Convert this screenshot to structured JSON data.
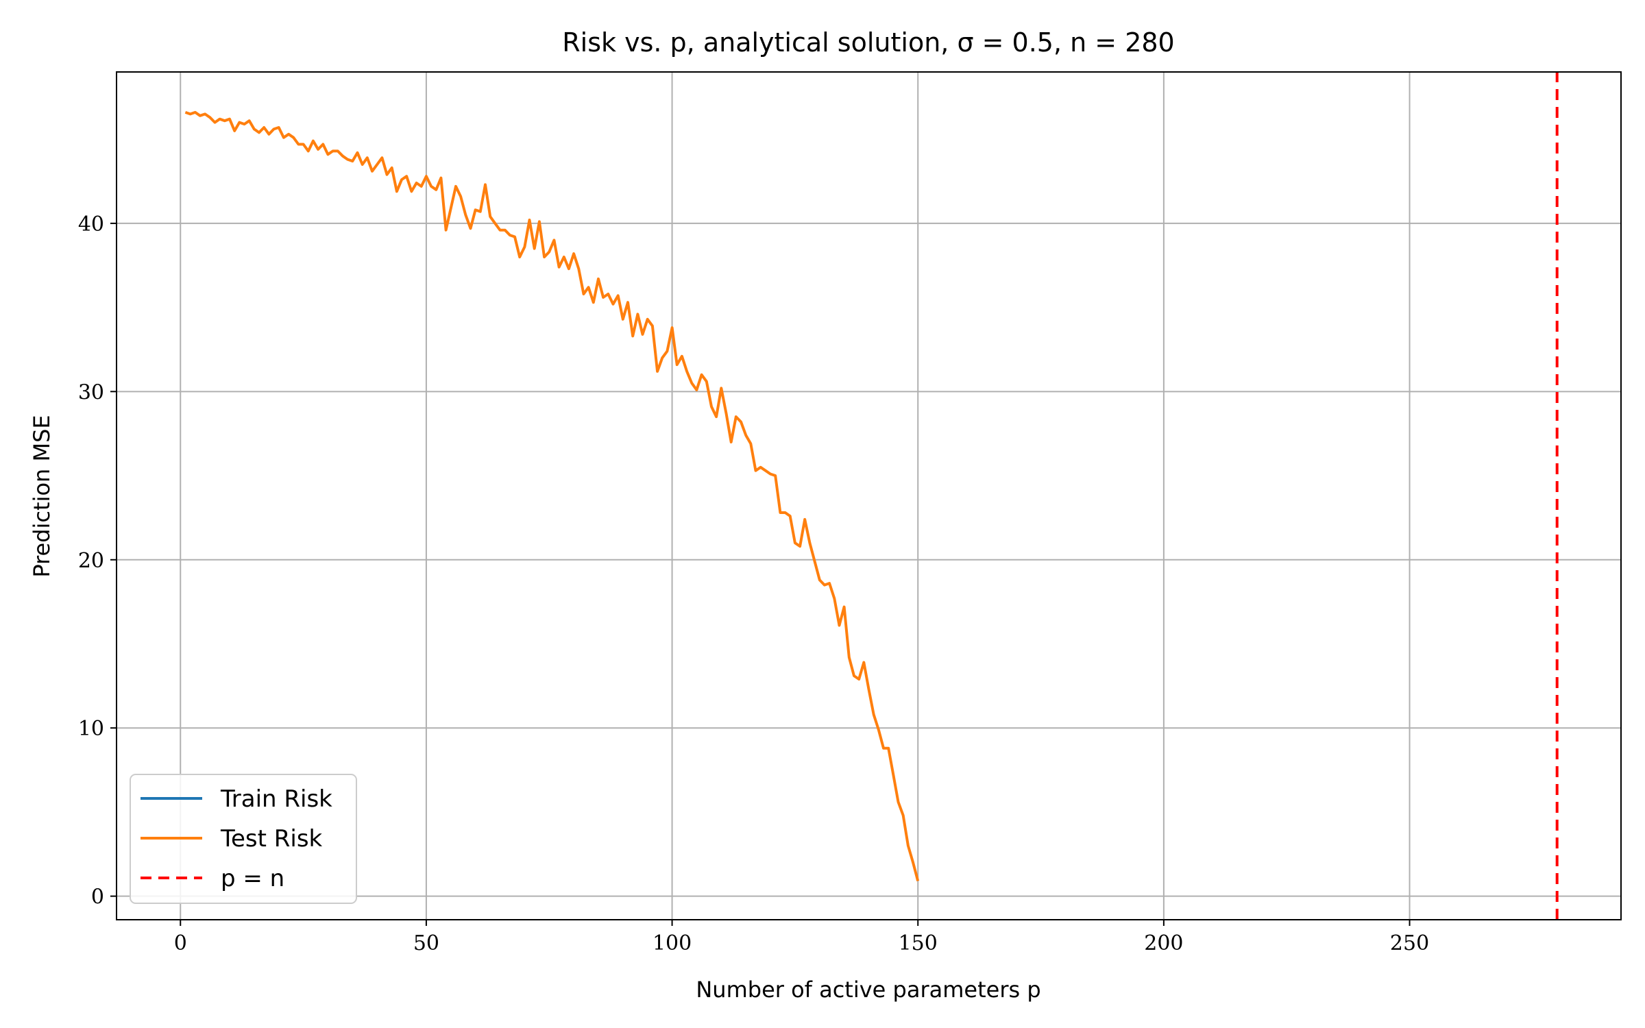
{
  "chart_data": {
    "type": "line",
    "title": "Risk vs. p, analytical solution, σ = 0.5, n = 280",
    "xlabel": "Number of active parameters p",
    "ylabel": "Prediction MSE",
    "xlim": [
      -13,
      293
    ],
    "ylim": [
      -1.4,
      49
    ],
    "xticks": [
      0,
      50,
      100,
      150,
      200,
      250
    ],
    "yticks": [
      0,
      10,
      20,
      30,
      40
    ],
    "grid": true,
    "legend_position": "lower-left",
    "series": [
      {
        "name": "Train Risk",
        "color": "#1f77b4",
        "x": [],
        "y": []
      },
      {
        "name": "Test Risk",
        "color": "#ff7f0e",
        "x": [
          1,
          2,
          3,
          4,
          5,
          6,
          7,
          8,
          9,
          10,
          11,
          12,
          13,
          14,
          15,
          16,
          17,
          18,
          19,
          20,
          21,
          22,
          23,
          24,
          25,
          26,
          27,
          28,
          29,
          30,
          31,
          32,
          33,
          34,
          35,
          36,
          37,
          38,
          39,
          40,
          41,
          42,
          43,
          44,
          45,
          46,
          47,
          48,
          49,
          50,
          51,
          52,
          53,
          54,
          55,
          56,
          57,
          58,
          59,
          60,
          61,
          62,
          63,
          64,
          65,
          66,
          67,
          68,
          69,
          70,
          71,
          72,
          73,
          74,
          75,
          76,
          77,
          78,
          79,
          80,
          81,
          82,
          83,
          84,
          85,
          86,
          87,
          88,
          89,
          90,
          91,
          92,
          93,
          94,
          95,
          96,
          97,
          98,
          99,
          100,
          101,
          102,
          103,
          104,
          105,
          106,
          107,
          108,
          109,
          110,
          111,
          112,
          113,
          114,
          115,
          116,
          117,
          118,
          119,
          120,
          121,
          122,
          123,
          124,
          125,
          126,
          127,
          128,
          129,
          130,
          131,
          132,
          133,
          134,
          135,
          136,
          137,
          138,
          139,
          140,
          141,
          142,
          143,
          144,
          145,
          146,
          147,
          148,
          149,
          150
        ],
        "y": [
          46.6,
          46.5,
          46.6,
          46.4,
          46.5,
          46.3,
          46.0,
          46.2,
          46.1,
          46.2,
          45.5,
          46.0,
          45.9,
          46.1,
          45.6,
          45.4,
          45.7,
          45.3,
          45.6,
          45.7,
          45.1,
          45.3,
          45.1,
          44.7,
          44.7,
          44.3,
          44.9,
          44.4,
          44.7,
          44.1,
          44.3,
          44.3,
          44.0,
          43.8,
          43.7,
          44.2,
          43.5,
          43.9,
          43.1,
          43.5,
          43.9,
          42.9,
          43.3,
          41.9,
          42.6,
          42.8,
          41.9,
          42.4,
          42.2,
          42.8,
          42.2,
          42.0,
          42.7,
          39.6,
          40.9,
          42.2,
          41.6,
          40.5,
          39.7,
          40.8,
          40.7,
          42.3,
          40.4,
          40.0,
          39.6,
          39.6,
          39.3,
          39.2,
          38.0,
          38.6,
          40.2,
          38.5,
          40.1,
          38.0,
          38.3,
          39.0,
          37.4,
          38.0,
          37.3,
          38.2,
          37.3,
          35.8,
          36.2,
          35.3,
          36.7,
          35.6,
          35.8,
          35.2,
          35.7,
          34.3,
          35.3,
          33.3,
          34.6,
          33.4,
          34.3,
          33.9,
          31.2,
          32.0,
          32.4,
          33.8,
          31.6,
          32.1,
          31.2,
          30.5,
          30.1,
          31.0,
          30.6,
          29.1,
          28.5,
          30.2,
          28.7,
          27.0,
          28.5,
          28.2,
          27.4,
          26.9,
          25.3,
          25.5,
          25.3,
          25.1,
          25.0,
          22.8,
          22.8,
          22.6,
          21.0,
          20.8,
          22.4,
          21.0,
          19.9,
          18.8,
          18.5,
          18.6,
          17.7,
          16.1,
          17.2,
          14.2,
          13.1,
          12.9,
          13.9,
          12.3,
          10.8,
          9.9,
          8.8,
          8.8,
          7.2,
          5.6,
          4.8,
          3.0,
          2.0,
          0.9
        ]
      },
      {
        "name": "p = n",
        "color": "#ff0000",
        "style": "dashed",
        "x": [
          280,
          280
        ],
        "y": [
          -1.4,
          49
        ]
      }
    ]
  }
}
